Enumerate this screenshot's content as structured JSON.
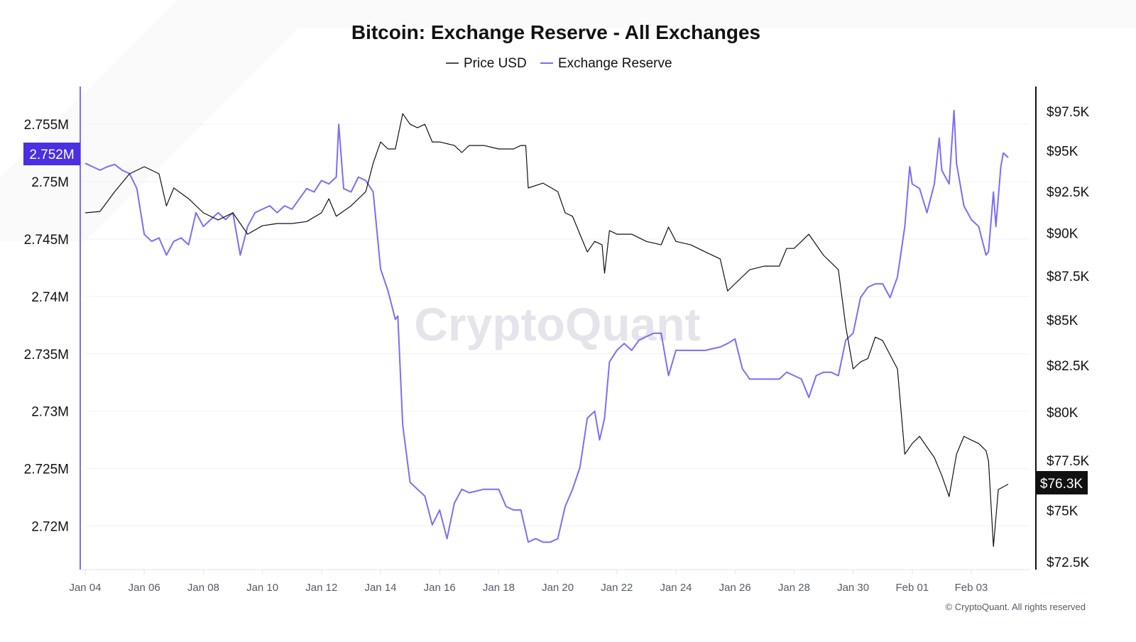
{
  "chart_data": {
    "type": "line",
    "title": "Bitcoin: Exchange Reserve - All Exchanges",
    "legend": {
      "placement": "top-center",
      "entries": [
        "Price USD",
        "Exchange Reserve"
      ]
    },
    "watermark": "CryptoQuant",
    "footer": "© CryptoQuant. All rights reserved",
    "grid": true,
    "colors": {
      "price": "#111111",
      "reserve": "#7b6ef6",
      "reserve_badge": "#4a30e0",
      "price_badge": "#111111"
    },
    "x_ticks": [
      "Jan 04",
      "Jan 06",
      "Jan 08",
      "Jan 10",
      "Jan 12",
      "Jan 14",
      "Jan 16",
      "Jan 18",
      "Jan 20",
      "Jan 22",
      "Jan 24",
      "Jan 26",
      "Jan 28",
      "Jan 30",
      "Feb 01",
      "Feb 03"
    ],
    "y_left": {
      "series": "Exchange Reserve",
      "scale": "linear",
      "ylim": [
        2.7162,
        2.7581
      ],
      "unit": "M",
      "ticks": [
        2.72,
        2.725,
        2.73,
        2.735,
        2.74,
        2.745,
        2.75,
        2.755
      ],
      "tick_labels": [
        "2.72M",
        "2.725M",
        "2.73M",
        "2.735M",
        "2.74M",
        "2.745M",
        "2.75M",
        "2.755M"
      ],
      "current_label": "2.752M",
      "current_value": 2.752
    },
    "y_right": {
      "series": "Price USD",
      "scale": "log",
      "ylim": [
        72.13,
        98.97
      ],
      "unit": "K USD",
      "ticks": [
        72.5,
        75,
        77.5,
        80,
        82.5,
        85,
        87.5,
        90,
        92.5,
        95,
        97.5
      ],
      "tick_labels": [
        "$72.5K",
        "$75K",
        "$77.5K",
        "$80K",
        "$82.5K",
        "$85K",
        "$87.5K",
        "$90K",
        "$92.5K",
        "$95K",
        "$97.5K"
      ],
      "current_label": "$76.3K",
      "current_value": 76.3
    },
    "series": [
      {
        "name": "Price USD",
        "axis": "right",
        "points": [
          [
            "Jan 04 00:00",
            91.21
          ],
          [
            "Jan 04 12:00",
            91.29
          ],
          [
            "Jan 05 00:00",
            92.49
          ],
          [
            "Jan 05 12:00",
            93.58
          ],
          [
            "Jan 06 00:00",
            94.02
          ],
          [
            "Jan 06 12:00",
            93.58
          ],
          [
            "Jan 06 18:00",
            91.63
          ],
          [
            "Jan 07 00:00",
            92.71
          ],
          [
            "Jan 07 12:00",
            92.06
          ],
          [
            "Jan 08 00:00",
            91.21
          ],
          [
            "Jan 08 12:00",
            90.78
          ],
          [
            "Jan 09 00:00",
            91.21
          ],
          [
            "Jan 09 12:00",
            89.94
          ],
          [
            "Jan 10 00:00",
            90.44
          ],
          [
            "Jan 10 12:00",
            90.57
          ],
          [
            "Jan 11 00:00",
            90.57
          ],
          [
            "Jan 11 12:00",
            90.69
          ],
          [
            "Jan 12 00:00",
            91.21
          ],
          [
            "Jan 12 06:00",
            92.06
          ],
          [
            "Jan 12 12:00",
            91.0
          ],
          [
            "Jan 13 00:00",
            91.63
          ],
          [
            "Jan 13 12:00",
            92.49
          ],
          [
            "Jan 13 18:00",
            94.24
          ],
          [
            "Jan 14 00:00",
            95.56
          ],
          [
            "Jan 14 06:00",
            95.12
          ],
          [
            "Jan 14 12:00",
            95.12
          ],
          [
            "Jan 14 18:00",
            97.36
          ],
          [
            "Jan 15 00:00",
            96.68
          ],
          [
            "Jan 15 06:00",
            96.46
          ],
          [
            "Jan 15 12:00",
            96.68
          ],
          [
            "Jan 15 18:00",
            95.56
          ],
          [
            "Jan 16 00:00",
            95.56
          ],
          [
            "Jan 16 12:00",
            95.34
          ],
          [
            "Jan 16 18:00",
            94.9
          ],
          [
            "Jan 17 00:00",
            95.34
          ],
          [
            "Jan 17 12:00",
            95.34
          ],
          [
            "Jan 18 00:00",
            95.12
          ],
          [
            "Jan 18 12:00",
            95.12
          ],
          [
            "Jan 18 18:00",
            95.34
          ],
          [
            "Jan 18 22:00",
            95.34
          ],
          [
            "Jan 19 00:00",
            92.71
          ],
          [
            "Jan 19 12:00",
            93.01
          ],
          [
            "Jan 20 00:00",
            92.49
          ],
          [
            "Jan 20 06:00",
            91.21
          ],
          [
            "Jan 20 12:00",
            91.0
          ],
          [
            "Jan 20 18:00",
            89.94
          ],
          [
            "Jan 21 00:00",
            88.89
          ],
          [
            "Jan 21 06:00",
            89.51
          ],
          [
            "Jan 21 12:00",
            89.31
          ],
          [
            "Jan 21 14:00",
            87.66
          ],
          [
            "Jan 21 18:00",
            90.15
          ],
          [
            "Jan 22 00:00",
            89.94
          ],
          [
            "Jan 22 12:00",
            89.94
          ],
          [
            "Jan 23 00:00",
            89.51
          ],
          [
            "Jan 23 12:00",
            89.31
          ],
          [
            "Jan 23 18:00",
            90.36
          ],
          [
            "Jan 24 00:00",
            89.51
          ],
          [
            "Jan 24 12:00",
            89.31
          ],
          [
            "Jan 25 00:00",
            88.89
          ],
          [
            "Jan 25 12:00",
            88.48
          ],
          [
            "Jan 25 18:00",
            86.64
          ],
          [
            "Jan 26 00:00",
            87.05
          ],
          [
            "Jan 26 12:00",
            87.86
          ],
          [
            "Jan 27 00:00",
            88.07
          ],
          [
            "Jan 27 12:00",
            88.07
          ],
          [
            "Jan 27 18:00",
            89.1
          ],
          [
            "Jan 28 00:00",
            89.1
          ],
          [
            "Jan 28 06:00",
            89.51
          ],
          [
            "Jan 28 12:00",
            89.94
          ],
          [
            "Jan 28 18:00",
            89.31
          ],
          [
            "Jan 29 00:00",
            88.69
          ],
          [
            "Jan 29 12:00",
            87.86
          ],
          [
            "Jan 29 18:00",
            84.64
          ],
          [
            "Jan 30 00:00",
            82.31
          ],
          [
            "Jan 30 06:00",
            82.69
          ],
          [
            "Jan 30 12:00",
            82.88
          ],
          [
            "Jan 30 18:00",
            84.05
          ],
          [
            "Jan 31 00:00",
            83.86
          ],
          [
            "Jan 31 06:00",
            83.08
          ],
          [
            "Jan 31 12:00",
            82.31
          ],
          [
            "Jan 31 18:00",
            77.82
          ],
          [
            "Feb 01 00:00",
            78.37
          ],
          [
            "Feb 01 06:00",
            78.74
          ],
          [
            "Feb 01 12:00",
            78.19
          ],
          [
            "Feb 01 18:00",
            77.65
          ],
          [
            "Feb 02 00:00",
            76.74
          ],
          [
            "Feb 02 06:00",
            75.68
          ],
          [
            "Feb 02 12:00",
            77.82
          ],
          [
            "Feb 02 18:00",
            78.74
          ],
          [
            "Feb 03 00:00",
            78.55
          ],
          [
            "Feb 03 06:00",
            78.37
          ],
          [
            "Feb 03 12:00",
            78.0
          ],
          [
            "Feb 03 14:00",
            77.46
          ],
          [
            "Feb 03 18:00",
            73.24
          ],
          [
            "Feb 03 22:00",
            76.03
          ],
          [
            "Feb 04 06:00",
            76.3
          ]
        ]
      },
      {
        "name": "Exchange Reserve",
        "axis": "left",
        "points": [
          [
            "Jan 04 00:00",
            2.7516
          ],
          [
            "Jan 04 06:00",
            2.7513
          ],
          [
            "Jan 04 12:00",
            2.751
          ],
          [
            "Jan 04 18:00",
            2.7513
          ],
          [
            "Jan 05 00:00",
            2.7515
          ],
          [
            "Jan 05 06:00",
            2.751
          ],
          [
            "Jan 05 12:00",
            2.7507
          ],
          [
            "Jan 05 18:00",
            2.7494
          ],
          [
            "Jan 06 00:00",
            2.7454
          ],
          [
            "Jan 06 06:00",
            2.7448
          ],
          [
            "Jan 06 12:00",
            2.7451
          ],
          [
            "Jan 06 18:00",
            2.7436
          ],
          [
            "Jan 07 00:00",
            2.7448
          ],
          [
            "Jan 07 06:00",
            2.7451
          ],
          [
            "Jan 07 12:00",
            2.7445
          ],
          [
            "Jan 07 18:00",
            2.7473
          ],
          [
            "Jan 08 00:00",
            2.7461
          ],
          [
            "Jan 08 06:00",
            2.7467
          ],
          [
            "Jan 08 12:00",
            2.7473
          ],
          [
            "Jan 08 18:00",
            2.7467
          ],
          [
            "Jan 09 00:00",
            2.7473
          ],
          [
            "Jan 09 06:00",
            2.7436
          ],
          [
            "Jan 09 12:00",
            2.7461
          ],
          [
            "Jan 09 18:00",
            2.7473
          ],
          [
            "Jan 10 00:00",
            2.7476
          ],
          [
            "Jan 10 06:00",
            2.7479
          ],
          [
            "Jan 10 12:00",
            2.7473
          ],
          [
            "Jan 10 18:00",
            2.7479
          ],
          [
            "Jan 11 00:00",
            2.7476
          ],
          [
            "Jan 11 06:00",
            2.7485
          ],
          [
            "Jan 11 12:00",
            2.7494
          ],
          [
            "Jan 11 18:00",
            2.7491
          ],
          [
            "Jan 12 00:00",
            2.7501
          ],
          [
            "Jan 12 06:00",
            2.7498
          ],
          [
            "Jan 12 12:00",
            2.7504
          ],
          [
            "Jan 12 14:00",
            2.755
          ],
          [
            "Jan 12 18:00",
            2.7494
          ],
          [
            "Jan 13 00:00",
            2.7491
          ],
          [
            "Jan 13 06:00",
            2.7504
          ],
          [
            "Jan 13 12:00",
            2.7501
          ],
          [
            "Jan 13 18:00",
            2.7491
          ],
          [
            "Jan 14 00:00",
            2.7424
          ],
          [
            "Jan 14 06:00",
            2.7405
          ],
          [
            "Jan 14 12:00",
            2.738
          ],
          [
            "Jan 14 14:00",
            2.7383
          ],
          [
            "Jan 14 18:00",
            2.7288
          ],
          [
            "Jan 15 00:00",
            2.7238
          ],
          [
            "Jan 15 06:00",
            2.7232
          ],
          [
            "Jan 15 12:00",
            2.7226
          ],
          [
            "Jan 15 18:00",
            2.7201
          ],
          [
            "Jan 16 00:00",
            2.7214
          ],
          [
            "Jan 16 06:00",
            2.7189
          ],
          [
            "Jan 16 12:00",
            2.722
          ],
          [
            "Jan 16 18:00",
            2.7232
          ],
          [
            "Jan 17 00:00",
            2.7229
          ],
          [
            "Jan 17 12:00",
            2.7232
          ],
          [
            "Jan 18 00:00",
            2.7232
          ],
          [
            "Jan 18 06:00",
            2.7217
          ],
          [
            "Jan 18 12:00",
            2.7214
          ],
          [
            "Jan 18 18:00",
            2.7214
          ],
          [
            "Jan 19 00:00",
            2.7186
          ],
          [
            "Jan 19 06:00",
            2.7189
          ],
          [
            "Jan 19 12:00",
            2.7186
          ],
          [
            "Jan 19 18:00",
            2.7186
          ],
          [
            "Jan 20 00:00",
            2.7189
          ],
          [
            "Jan 20 06:00",
            2.7217
          ],
          [
            "Jan 20 12:00",
            2.7232
          ],
          [
            "Jan 20 18:00",
            2.7251
          ],
          [
            "Jan 21 00:00",
            2.7294
          ],
          [
            "Jan 21 06:00",
            2.73
          ],
          [
            "Jan 21 10:00",
            2.7275
          ],
          [
            "Jan 21 14:00",
            2.7294
          ],
          [
            "Jan 21 18:00",
            2.7343
          ],
          [
            "Jan 22 00:00",
            2.7353
          ],
          [
            "Jan 22 06:00",
            2.7359
          ],
          [
            "Jan 22 12:00",
            2.7353
          ],
          [
            "Jan 22 18:00",
            2.7362
          ],
          [
            "Jan 23 00:00",
            2.7365
          ],
          [
            "Jan 23 06:00",
            2.7368
          ],
          [
            "Jan 23 12:00",
            2.7368
          ],
          [
            "Jan 23 18:00",
            2.7331
          ],
          [
            "Jan 24 00:00",
            2.7353
          ],
          [
            "Jan 24 12:00",
            2.7353
          ],
          [
            "Jan 25 00:00",
            2.7353
          ],
          [
            "Jan 25 12:00",
            2.7356
          ],
          [
            "Jan 25 18:00",
            2.7359
          ],
          [
            "Jan 26 00:00",
            2.7363
          ],
          [
            "Jan 26 06:00",
            2.7337
          ],
          [
            "Jan 26 12:00",
            2.7328
          ],
          [
            "Jan 27 00:00",
            2.7328
          ],
          [
            "Jan 27 12:00",
            2.7328
          ],
          [
            "Jan 27 18:00",
            2.7334
          ],
          [
            "Jan 28 00:00",
            2.7331
          ],
          [
            "Jan 28 06:00",
            2.7328
          ],
          [
            "Jan 28 12:00",
            2.7312
          ],
          [
            "Jan 28 18:00",
            2.7331
          ],
          [
            "Jan 29 00:00",
            2.7334
          ],
          [
            "Jan 29 06:00",
            2.7334
          ],
          [
            "Jan 29 12:00",
            2.7331
          ],
          [
            "Jan 29 18:00",
            2.7362
          ],
          [
            "Jan 30 00:00",
            2.7368
          ],
          [
            "Jan 30 06:00",
            2.7399
          ],
          [
            "Jan 30 12:00",
            2.7408
          ],
          [
            "Jan 30 18:00",
            2.7411
          ],
          [
            "Jan 31 00:00",
            2.7411
          ],
          [
            "Jan 31 06:00",
            2.7399
          ],
          [
            "Jan 31 12:00",
            2.7417
          ],
          [
            "Jan 31 18:00",
            2.7461
          ],
          [
            "Jan 31 22:00",
            2.7513
          ],
          [
            "Feb 01 00:00",
            2.7498
          ],
          [
            "Feb 01 06:00",
            2.7494
          ],
          [
            "Feb 01 12:00",
            2.7473
          ],
          [
            "Feb 01 18:00",
            2.7498
          ],
          [
            "Feb 01 22:00",
            2.7538
          ],
          [
            "Feb 02 00:00",
            2.751
          ],
          [
            "Feb 02 06:00",
            2.7498
          ],
          [
            "Feb 02 10:00",
            2.7562
          ],
          [
            "Feb 02 12:00",
            2.7516
          ],
          [
            "Feb 02 18:00",
            2.7479
          ],
          [
            "Feb 03 00:00",
            2.7467
          ],
          [
            "Feb 03 06:00",
            2.7461
          ],
          [
            "Feb 03 12:00",
            2.7436
          ],
          [
            "Feb 03 14:00",
            2.7439
          ],
          [
            "Feb 03 18:00",
            2.7491
          ],
          [
            "Feb 03 20:00",
            2.7461
          ],
          [
            "Feb 04 00:00",
            2.7513
          ],
          [
            "Feb 04 02:00",
            2.7525
          ],
          [
            "Feb 04 06:00",
            2.7521
          ]
        ]
      }
    ]
  }
}
